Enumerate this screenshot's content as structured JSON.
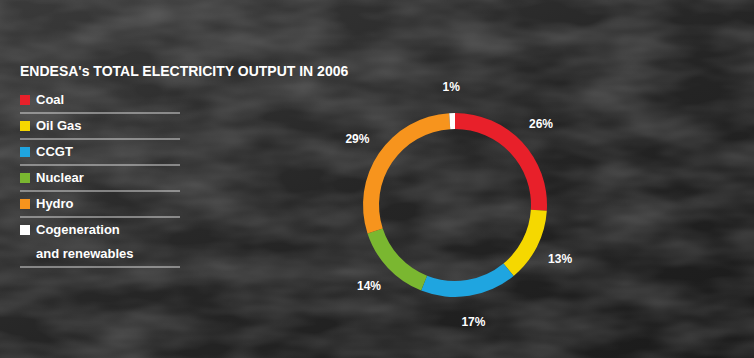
{
  "chart_data": {
    "type": "donut",
    "title": "ENDESA's TOTAL ELECTRICITY OUTPUT IN 2006",
    "categories": [
      "Coal",
      "Oil Gas",
      "CCGT",
      "Nuclear",
      "Hydro",
      "Cogeneration and renewables"
    ],
    "values": [
      26,
      13,
      17,
      14,
      29,
      1
    ],
    "value_labels": [
      "26%",
      "13%",
      "17%",
      "14%",
      "29%",
      "1%"
    ],
    "colors": [
      "#e8202a",
      "#f5d800",
      "#1fa5e0",
      "#7ab730",
      "#f7941d",
      "#ffffff"
    ],
    "data_labels": true,
    "legend": "left"
  }
}
